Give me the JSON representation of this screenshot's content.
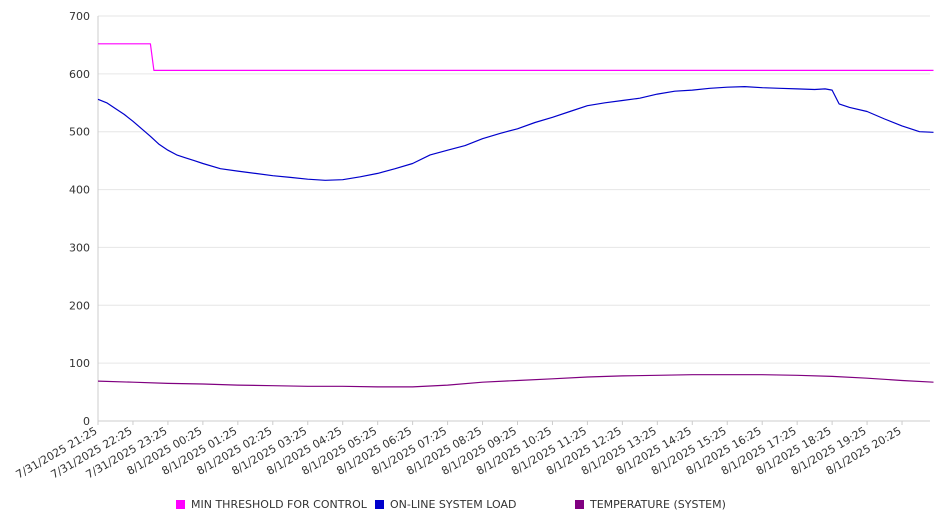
{
  "chart_data": {
    "type": "line",
    "ylim": [
      0,
      700
    ],
    "y_ticks": [
      0,
      100,
      200,
      300,
      400,
      500,
      600,
      700
    ],
    "x_tick_labels": [
      "7/31/2025 21:25",
      "7/31/2025 22:25",
      "7/31/2025 23:25",
      "8/1/2025 00:25",
      "8/1/2025 01:25",
      "8/1/2025 02:25",
      "8/1/2025 03:25",
      "8/1/2025 04:25",
      "8/1/2025 05:25",
      "8/1/2025 06:25",
      "8/1/2025 07:25",
      "8/1/2025 08:25",
      "8/1/2025 09:25",
      "8/1/2025 10:25",
      "8/1/2025 11:25",
      "8/1/2025 12:25",
      "8/1/2025 13:25",
      "8/1/2025 14:25",
      "8/1/2025 15:25",
      "8/1/2025 16:25",
      "8/1/2025 17:25",
      "8/1/2025 18:25",
      "8/1/2025 19:25",
      "8/1/2025 20:25"
    ],
    "grid": true,
    "legend_position": "bottom",
    "series": [
      {
        "name": "MIN THRESHOLD FOR CONTROL",
        "color": "#ff00ff",
        "points": [
          [
            0,
            652
          ],
          [
            1.5,
            652
          ],
          [
            1.6,
            606
          ],
          [
            23.9,
            606
          ]
        ]
      },
      {
        "name": "ON-LINE SYSTEM LOAD",
        "color": "#0000cc",
        "points": [
          [
            0,
            556
          ],
          [
            0.25,
            550
          ],
          [
            0.5,
            540
          ],
          [
            0.75,
            530
          ],
          [
            1,
            518
          ],
          [
            1.25,
            505
          ],
          [
            1.5,
            492
          ],
          [
            1.75,
            478
          ],
          [
            2,
            468
          ],
          [
            2.25,
            460
          ],
          [
            2.5,
            455
          ],
          [
            2.75,
            450
          ],
          [
            3,
            445
          ],
          [
            3.5,
            436
          ],
          [
            4,
            432
          ],
          [
            4.5,
            428
          ],
          [
            5,
            424
          ],
          [
            5.5,
            421
          ],
          [
            6,
            418
          ],
          [
            6.5,
            416
          ],
          [
            7,
            417
          ],
          [
            7.5,
            422
          ],
          [
            8,
            428
          ],
          [
            8.5,
            436
          ],
          [
            9,
            445
          ],
          [
            9.5,
            460
          ],
          [
            10,
            468
          ],
          [
            10.5,
            476
          ],
          [
            11,
            488
          ],
          [
            11.5,
            497
          ],
          [
            12,
            505
          ],
          [
            12.5,
            516
          ],
          [
            13,
            525
          ],
          [
            13.5,
            535
          ],
          [
            14,
            545
          ],
          [
            14.5,
            550
          ],
          [
            15,
            554
          ],
          [
            15.5,
            558
          ],
          [
            16,
            565
          ],
          [
            16.5,
            570
          ],
          [
            17,
            572
          ],
          [
            17.5,
            575
          ],
          [
            18,
            577
          ],
          [
            18.5,
            578
          ],
          [
            19,
            576
          ],
          [
            19.5,
            575
          ],
          [
            20,
            574
          ],
          [
            20.5,
            573
          ],
          [
            20.8,
            574
          ],
          [
            21,
            572
          ],
          [
            21.2,
            548
          ],
          [
            21.5,
            542
          ],
          [
            22,
            535
          ],
          [
            22.5,
            522
          ],
          [
            23,
            510
          ],
          [
            23.5,
            500
          ],
          [
            23.9,
            499
          ]
        ]
      },
      {
        "name": "TEMPERATURE (SYSTEM)",
        "color": "#800080",
        "points": [
          [
            0,
            69
          ],
          [
            1,
            67
          ],
          [
            2,
            65
          ],
          [
            3,
            64
          ],
          [
            4,
            62
          ],
          [
            5,
            61
          ],
          [
            6,
            60
          ],
          [
            7,
            60
          ],
          [
            8,
            59
          ],
          [
            9,
            59
          ],
          [
            10,
            62
          ],
          [
            11,
            67
          ],
          [
            12,
            70
          ],
          [
            13,
            73
          ],
          [
            14,
            76
          ],
          [
            15,
            78
          ],
          [
            16,
            79
          ],
          [
            17,
            80
          ],
          [
            18,
            80
          ],
          [
            19,
            80
          ],
          [
            20,
            79
          ],
          [
            21,
            77
          ],
          [
            22,
            74
          ],
          [
            23,
            70
          ],
          [
            23.9,
            67
          ]
        ]
      }
    ]
  }
}
